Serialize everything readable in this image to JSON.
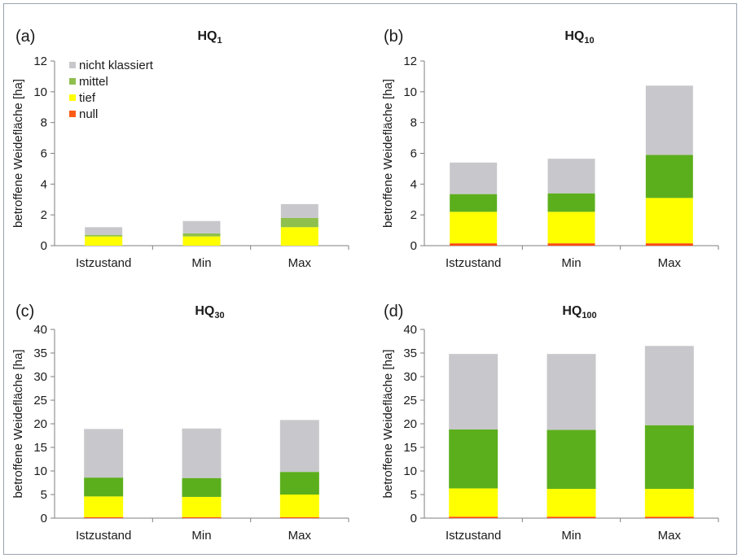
{
  "legend": {
    "entries": [
      {
        "key": "nicht_klassiert",
        "label": "nicht klassiert",
        "color": "#c8c8cc"
      },
      {
        "key": "mittel",
        "label": "mittel",
        "color": "#8fbf4d"
      },
      {
        "key": "tief",
        "label": "tief",
        "color": "#ffff00"
      },
      {
        "key": "null",
        "label": "null",
        "color": "#ff5a14"
      }
    ]
  },
  "colors_dark": {
    "nicht_klassiert": "#c8c8cc",
    "mittel": "#5caf1c",
    "tief": "#ffff00",
    "null": "#ff4a10"
  },
  "chart_data": [
    {
      "type": "bar",
      "stacked": true,
      "panel_label": "(a)",
      "title": "HQ",
      "title_sub": "1",
      "ylabel": "betroffene Weidefläche [ha]",
      "categories": [
        "Istzustand",
        "Min",
        "Max"
      ],
      "ylim": [
        0,
        12
      ],
      "yticks": [
        0,
        2,
        4,
        6,
        8,
        10,
        12
      ],
      "legend": "top-left",
      "series": [
        {
          "name": "null",
          "values": [
            0.0,
            0.0,
            0.0
          ]
        },
        {
          "name": "tief",
          "values": [
            0.6,
            0.6,
            1.2
          ]
        },
        {
          "name": "mittel",
          "values": [
            0.1,
            0.2,
            0.6
          ]
        },
        {
          "name": "nicht klassiert",
          "values": [
            0.5,
            0.8,
            0.9
          ]
        }
      ]
    },
    {
      "type": "bar",
      "stacked": true,
      "panel_label": "(b)",
      "title": "HQ",
      "title_sub": "10",
      "ylabel": "betroffene Weidefläche [ha]",
      "categories": [
        "Istzustand",
        "Min",
        "Max"
      ],
      "ylim": [
        0,
        12
      ],
      "yticks": [
        0,
        2,
        4,
        6,
        8,
        10,
        12
      ],
      "series": [
        {
          "name": "null",
          "values": [
            0.15,
            0.15,
            0.15
          ]
        },
        {
          "name": "tief",
          "values": [
            2.05,
            2.05,
            2.95
          ]
        },
        {
          "name": "mittel",
          "values": [
            1.15,
            1.2,
            2.8
          ]
        },
        {
          "name": "nicht klassiert",
          "values": [
            2.05,
            2.25,
            4.5
          ]
        }
      ]
    },
    {
      "type": "bar",
      "stacked": true,
      "panel_label": "(c)",
      "title": "HQ",
      "title_sub": "30",
      "ylabel": "betroffene Weidefläche [ha]",
      "categories": [
        "Istzustand",
        "Min",
        "Max"
      ],
      "ylim": [
        0,
        40
      ],
      "yticks": [
        0,
        5,
        10,
        15,
        20,
        25,
        30,
        35,
        40
      ],
      "series": [
        {
          "name": "null",
          "values": [
            0.2,
            0.2,
            0.2
          ]
        },
        {
          "name": "tief",
          "values": [
            4.4,
            4.3,
            4.8
          ]
        },
        {
          "name": "mittel",
          "values": [
            4.0,
            4.0,
            4.8
          ]
        },
        {
          "name": "nicht klassiert",
          "values": [
            10.3,
            10.5,
            11.0
          ]
        }
      ]
    },
    {
      "type": "bar",
      "stacked": true,
      "panel_label": "(d)",
      "title": "HQ",
      "title_sub": "100",
      "ylabel": "betroffene Weidefläche [ha]",
      "categories": [
        "Istzustand",
        "Min",
        "Max"
      ],
      "ylim": [
        0,
        40
      ],
      "yticks": [
        0,
        5,
        10,
        15,
        20,
        25,
        30,
        35,
        40
      ],
      "series": [
        {
          "name": "null",
          "values": [
            0.3,
            0.3,
            0.3
          ]
        },
        {
          "name": "tief",
          "values": [
            6.0,
            5.9,
            5.9
          ]
        },
        {
          "name": "mittel",
          "values": [
            12.5,
            12.5,
            13.5
          ]
        },
        {
          "name": "nicht klassiert",
          "values": [
            16.0,
            16.1,
            16.8
          ]
        }
      ]
    }
  ]
}
